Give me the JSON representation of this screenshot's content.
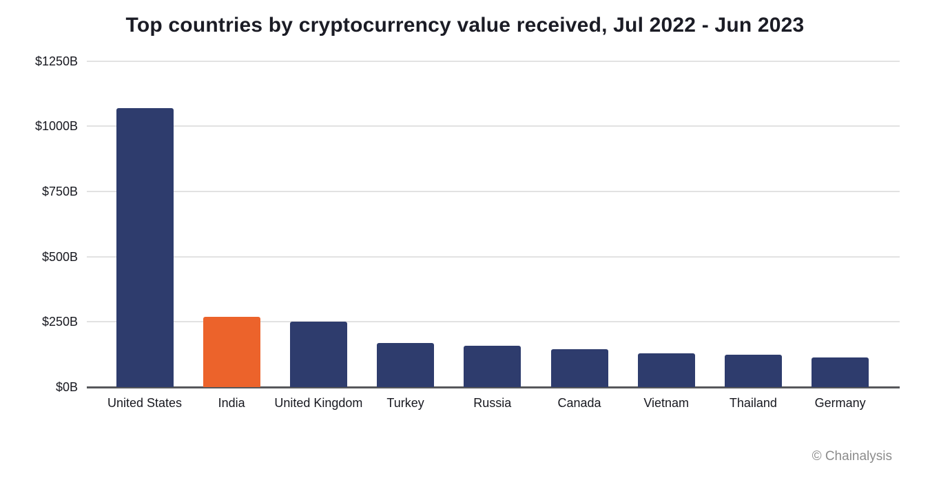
{
  "title": "Top countries by cryptocurrency value received, Jul 2022 - Jun 2023",
  "footer": {
    "credit": "© Chainalysis"
  },
  "colors": {
    "bar": "#2e3c6d",
    "highlight": "#ec632b",
    "gridline": "#e2e2e2",
    "axis": "#56575b",
    "text": "#17181f",
    "credit": "#8c8c8c"
  },
  "chart_data": {
    "type": "bar",
    "title": "Top countries by cryptocurrency value received, Jul 2022 - Jun 2023",
    "categories": [
      "United States",
      "India",
      "United Kingdom",
      "Turkey",
      "Russia",
      "Canada",
      "Vietnam",
      "Thailand",
      "Germany"
    ],
    "values": [
      1070,
      268,
      250,
      170,
      158,
      146,
      130,
      124,
      114
    ],
    "values_unit": "billions USD",
    "highlight_category": "India",
    "xlabel": "",
    "ylabel": "",
    "ylim": [
      0,
      1250
    ],
    "y_ticks": [
      "$0B",
      "$250B",
      "$500B",
      "$750B",
      "$1000B",
      "$1250B"
    ],
    "y_tick_values": [
      0,
      250,
      500,
      750,
      1000,
      1250
    ],
    "grid": "horizontal",
    "legend": "none"
  }
}
